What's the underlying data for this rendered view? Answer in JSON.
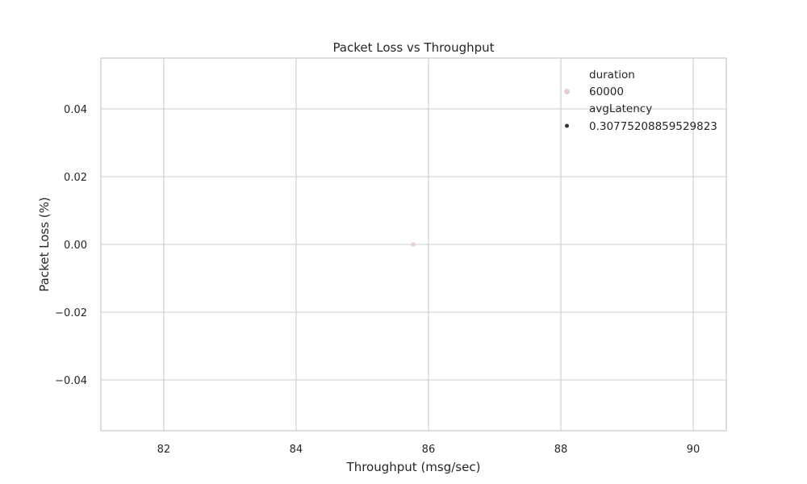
{
  "chart_data": {
    "type": "scatter",
    "title": "Packet Loss vs Throughput",
    "xlabel": "Throughput (msg/sec)",
    "ylabel": "Packet Loss (%)",
    "xlim": [
      81.05,
      90.5
    ],
    "ylim": [
      -0.055,
      0.055
    ],
    "x_ticks": [
      82,
      84,
      86,
      88,
      90
    ],
    "x_tick_labels": [
      "82",
      "84",
      "86",
      "88",
      "90"
    ],
    "y_ticks": [
      0.04,
      0.02,
      0.0,
      -0.02,
      -0.04
    ],
    "y_tick_labels": [
      "0.04",
      "0.02",
      "0.00",
      "−0.02",
      "−0.04"
    ],
    "grid": true,
    "points": [
      {
        "x": 85.77,
        "y": 0.0,
        "duration": 60000,
        "avgLatency": 0.30775208859529823
      }
    ],
    "legend": {
      "placement": "top-right",
      "hue_title": "duration",
      "hue_entries": [
        {
          "label": "60000",
          "color": "#ebcdcd"
        }
      ],
      "size_title": "avgLatency",
      "size_entries": [
        {
          "label": "0.30775208859529823",
          "color": "#333333"
        }
      ]
    },
    "colors": {
      "point": "#ebcdcd",
      "grid": "#cccccc",
      "text": "#262626"
    }
  }
}
